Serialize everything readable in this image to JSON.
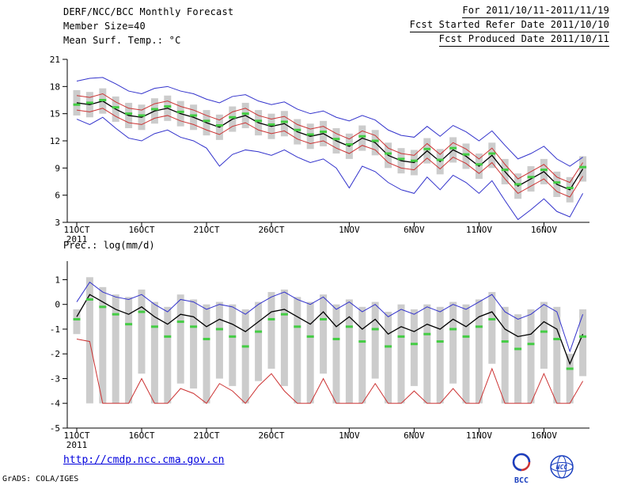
{
  "header": {
    "title": "DERF/NCC/BCC Monthly Forecast",
    "member_size": "Member Size=40",
    "forecast_range": "For 2011/10/11-2011/11/19",
    "refer_date": "Fcst Started Refer Date 2011/10/10",
    "produced_date": "Fcst Produced Date 2011/10/11"
  },
  "footer": {
    "url": "http://cmdp.ncc.cma.gov.cn",
    "credit": "GrADS: COLA/IGES",
    "logo_bcc": "BCC",
    "logo_ncc": "NCC"
  },
  "colors": {
    "bar": "#cccccc",
    "blue_line": "#3333cc",
    "red_line": "#cc3333",
    "black_line": "#000000",
    "green_dash": "#44cc44",
    "axis": "#000000",
    "url_blue": "#0000dd"
  },
  "chart_data": [
    {
      "id": "temp",
      "type": "line",
      "title": "Mean Surf. Temp.: °C",
      "ylim": [
        3,
        21
      ],
      "yticks": [
        21,
        18,
        15,
        12,
        9,
        6,
        3
      ],
      "year_label": "2011",
      "x_dates": [
        "11OCT",
        "12OCT",
        "13OCT",
        "14OCT",
        "15OCT",
        "16OCT",
        "17OCT",
        "18OCT",
        "19OCT",
        "20OCT",
        "21OCT",
        "22OCT",
        "23OCT",
        "24OCT",
        "25OCT",
        "26OCT",
        "27OCT",
        "28OCT",
        "29OCT",
        "30OCT",
        "31OCT",
        "1NOV",
        "2NOV",
        "3NOV",
        "4NOV",
        "5NOV",
        "6NOV",
        "7NOV",
        "8NOV",
        "9NOV",
        "10NOV",
        "11NOV",
        "12NOV",
        "13NOV",
        "14NOV",
        "15NOV",
        "16NOV",
        "17NOV",
        "18NOV",
        "19NOV"
      ],
      "x_ticks": [
        {
          "index": 0,
          "label": "11OCT"
        },
        {
          "index": 5,
          "label": "16OCT"
        },
        {
          "index": 10,
          "label": "21OCT"
        },
        {
          "index": 15,
          "label": "26OCT"
        },
        {
          "index": 21,
          "label": "1NOV"
        },
        {
          "index": 26,
          "label": "6NOV"
        },
        {
          "index": 31,
          "label": "11NOV"
        },
        {
          "index": 36,
          "label": "16NOV"
        }
      ],
      "series": [
        {
          "name": "ensemble-spread",
          "type": "bar",
          "color": "#cccccc",
          "low": [
            14.8,
            14.6,
            15.0,
            14.1,
            13.4,
            13.2,
            13.9,
            14.2,
            13.6,
            13.2,
            12.6,
            12.1,
            13.0,
            13.4,
            12.6,
            12.2,
            12.5,
            11.6,
            11.1,
            11.4,
            10.6,
            10.0,
            10.9,
            10.4,
            9.0,
            8.4,
            8.2,
            9.5,
            8.3,
            9.6,
            8.9,
            7.8,
            9.0,
            7.2,
            5.6,
            6.4,
            7.2,
            5.8,
            5.2,
            7.5
          ],
          "high": [
            17.6,
            17.4,
            17.8,
            16.9,
            16.2,
            16.0,
            16.7,
            17.0,
            16.4,
            16.0,
            15.4,
            14.9,
            15.8,
            16.2,
            15.4,
            15.0,
            15.3,
            14.4,
            13.9,
            14.2,
            13.4,
            12.8,
            13.7,
            13.2,
            11.8,
            11.2,
            11.0,
            12.3,
            11.1,
            12.4,
            11.7,
            10.6,
            11.8,
            10.0,
            8.4,
            9.2,
            10.0,
            8.6,
            8.0,
            10.3
          ]
        },
        {
          "name": "ensemble-max",
          "type": "line",
          "color": "#3333cc",
          "values": [
            18.6,
            18.9,
            19.0,
            18.3,
            17.5,
            17.2,
            17.8,
            18.0,
            17.5,
            17.2,
            16.6,
            16.2,
            16.9,
            17.1,
            16.4,
            16.0,
            16.3,
            15.5,
            15.0,
            15.3,
            14.6,
            14.2,
            14.8,
            14.3,
            13.2,
            12.6,
            12.4,
            13.6,
            12.5,
            13.7,
            13.0,
            12.0,
            13.1,
            11.5,
            10.0,
            10.6,
            11.4,
            10.0,
            9.2,
            10.2
          ]
        },
        {
          "name": "ensemble-min",
          "type": "line",
          "color": "#3333cc",
          "values": [
            14.4,
            13.8,
            14.6,
            13.4,
            12.3,
            12.0,
            12.8,
            13.2,
            12.4,
            12.0,
            11.2,
            9.2,
            10.5,
            11.0,
            10.8,
            10.4,
            11.0,
            10.2,
            9.6,
            10.0,
            9.0,
            6.8,
            9.2,
            8.6,
            7.4,
            6.6,
            6.2,
            8.0,
            6.6,
            8.2,
            7.4,
            6.2,
            7.6,
            5.4,
            3.3,
            4.4,
            5.6,
            4.2,
            3.6,
            6.2
          ]
        },
        {
          "name": "upper-quartile",
          "type": "line",
          "color": "#cc3333",
          "values": [
            17.0,
            16.8,
            17.2,
            16.3,
            15.6,
            15.4,
            16.1,
            16.4,
            15.8,
            15.4,
            14.8,
            14.3,
            15.2,
            15.6,
            14.8,
            14.4,
            14.7,
            13.8,
            13.3,
            13.6,
            12.8,
            12.2,
            13.1,
            12.6,
            11.2,
            10.6,
            10.4,
            11.7,
            10.5,
            11.8,
            11.1,
            10.0,
            11.2,
            9.4,
            7.8,
            8.6,
            9.4,
            8.0,
            7.4,
            9.6
          ]
        },
        {
          "name": "lower-quartile",
          "type": "line",
          "color": "#cc3333",
          "values": [
            15.4,
            15.2,
            15.6,
            14.7,
            14.0,
            13.8,
            14.5,
            14.8,
            14.2,
            13.8,
            13.2,
            12.7,
            13.6,
            14.0,
            13.2,
            12.8,
            13.1,
            12.2,
            11.7,
            12.0,
            11.2,
            10.6,
            11.5,
            11.0,
            9.6,
            9.0,
            8.8,
            10.1,
            8.9,
            10.2,
            9.5,
            8.4,
            9.6,
            7.8,
            6.2,
            7.0,
            7.8,
            6.4,
            5.8,
            8.1
          ]
        },
        {
          "name": "ensemble-mean",
          "type": "line",
          "color": "#000000",
          "values": [
            16.2,
            16.0,
            16.4,
            15.5,
            14.8,
            14.6,
            15.3,
            15.6,
            15.0,
            14.6,
            14.0,
            13.5,
            14.4,
            14.8,
            14.0,
            13.6,
            13.9,
            13.0,
            12.5,
            12.8,
            12.0,
            11.4,
            12.3,
            11.8,
            10.4,
            9.8,
            9.6,
            10.9,
            9.7,
            11.0,
            10.3,
            9.2,
            10.4,
            8.6,
            7.0,
            7.8,
            8.6,
            7.2,
            6.6,
            8.9
          ]
        },
        {
          "name": "ensemble-median",
          "type": "dash",
          "color": "#44cc44",
          "values": [
            16.0,
            16.2,
            16.5,
            15.7,
            15.0,
            14.8,
            15.5,
            15.8,
            15.2,
            14.8,
            14.2,
            13.7,
            14.6,
            15.0,
            14.2,
            13.8,
            14.1,
            13.2,
            12.7,
            13.0,
            12.2,
            11.6,
            12.5,
            12.0,
            10.6,
            10.0,
            9.8,
            11.1,
            9.9,
            11.2,
            10.5,
            9.4,
            10.6,
            8.8,
            7.2,
            8.0,
            8.8,
            7.4,
            6.8,
            9.1
          ]
        }
      ]
    },
    {
      "id": "precip",
      "type": "line",
      "title": "Prec.: log(mm/d)",
      "ylim": [
        -5,
        1.75
      ],
      "yticks": [
        1,
        0,
        -1,
        -2,
        -3,
        -4,
        -5
      ],
      "year_label": "2011",
      "x_dates": [
        "11OCT",
        "12OCT",
        "13OCT",
        "14OCT",
        "15OCT",
        "16OCT",
        "17OCT",
        "18OCT",
        "19OCT",
        "20OCT",
        "21OCT",
        "22OCT",
        "23OCT",
        "24OCT",
        "25OCT",
        "26OCT",
        "27OCT",
        "28OCT",
        "29OCT",
        "30OCT",
        "31OCT",
        "1NOV",
        "2NOV",
        "3NOV",
        "4NOV",
        "5NOV",
        "6NOV",
        "7NOV",
        "8NOV",
        "9NOV",
        "10NOV",
        "11NOV",
        "12NOV",
        "13NOV",
        "14NOV",
        "15NOV",
        "16NOV",
        "17NOV",
        "18NOV",
        "19NOV"
      ],
      "x_ticks": [
        {
          "index": 0,
          "label": "11OCT"
        },
        {
          "index": 5,
          "label": "16OCT"
        },
        {
          "index": 10,
          "label": "21OCT"
        },
        {
          "index": 15,
          "label": "26OCT"
        },
        {
          "index": 21,
          "label": "1NOV"
        },
        {
          "index": 26,
          "label": "6NOV"
        },
        {
          "index": 31,
          "label": "11NOV"
        },
        {
          "index": 36,
          "label": "16NOV"
        }
      ],
      "series": [
        {
          "name": "ensemble-spread",
          "type": "bar",
          "color": "#cccccc",
          "low": [
            -1.2,
            -4.0,
            -4.0,
            -4.0,
            -4.0,
            -2.8,
            -4.0,
            -4.0,
            -3.2,
            -3.4,
            -4.0,
            -3.0,
            -3.3,
            -4.0,
            -3.1,
            -2.6,
            -3.3,
            -4.0,
            -4.0,
            -2.8,
            -4.0,
            -4.0,
            -4.0,
            -3.0,
            -4.0,
            -4.0,
            -3.3,
            -4.0,
            -4.0,
            -3.2,
            -4.0,
            -4.0,
            -2.4,
            -4.0,
            -4.0,
            -4.0,
            -2.6,
            -4.0,
            -4.0,
            -2.9
          ],
          "high": [
            -0.2,
            1.1,
            0.7,
            0.4,
            0.3,
            0.6,
            0.1,
            -0.1,
            0.4,
            0.2,
            0.0,
            0.1,
            0.0,
            -0.2,
            0.1,
            0.5,
            0.6,
            0.3,
            0.1,
            0.4,
            0.0,
            0.2,
            -0.1,
            0.1,
            -0.3,
            0.0,
            -0.2,
            0.0,
            -0.1,
            0.1,
            0.0,
            0.2,
            0.5,
            -0.1,
            -0.4,
            -0.2,
            0.1,
            -0.1,
            -2.0,
            -0.2
          ]
        },
        {
          "name": "ensemble-max",
          "type": "line",
          "color": "#3333cc",
          "values": [
            0.1,
            0.9,
            0.5,
            0.3,
            0.2,
            0.4,
            0.0,
            -0.3,
            0.2,
            0.1,
            -0.2,
            0.0,
            -0.1,
            -0.4,
            0.0,
            0.3,
            0.5,
            0.2,
            0.0,
            0.3,
            -0.2,
            0.1,
            -0.3,
            0.0,
            -0.5,
            -0.2,
            -0.4,
            -0.1,
            -0.3,
            0.0,
            -0.2,
            0.1,
            0.4,
            -0.3,
            -0.6,
            -0.4,
            0.0,
            -0.3,
            -1.9,
            -0.4
          ]
        },
        {
          "name": "ensemble-min",
          "type": "line",
          "color": "#cc3333",
          "values": [
            -1.4,
            -1.5,
            -4.0,
            -4.0,
            -4.0,
            -3.0,
            -4.0,
            -4.0,
            -3.4,
            -3.6,
            -4.0,
            -3.2,
            -3.5,
            -4.0,
            -3.3,
            -2.8,
            -3.5,
            -4.0,
            -4.0,
            -3.0,
            -4.0,
            -4.0,
            -4.0,
            -3.2,
            -4.0,
            -4.0,
            -3.5,
            -4.0,
            -4.0,
            -3.4,
            -4.0,
            -4.0,
            -2.6,
            -4.0,
            -4.0,
            -4.0,
            -2.8,
            -4.0,
            -4.0,
            -3.1
          ]
        },
        {
          "name": "ensemble-mean",
          "type": "line",
          "color": "#000000",
          "values": [
            -0.5,
            0.4,
            0.1,
            -0.2,
            -0.4,
            -0.1,
            -0.5,
            -0.8,
            -0.4,
            -0.5,
            -0.9,
            -0.6,
            -0.8,
            -1.1,
            -0.7,
            -0.3,
            -0.2,
            -0.5,
            -0.8,
            -0.3,
            -0.9,
            -0.5,
            -1.0,
            -0.6,
            -1.2,
            -0.9,
            -1.1,
            -0.8,
            -1.0,
            -0.6,
            -0.9,
            -0.5,
            -0.3,
            -1.0,
            -1.3,
            -1.2,
            -0.7,
            -1.0,
            -2.4,
            -1.2
          ]
        },
        {
          "name": "ensemble-median",
          "type": "dash",
          "color": "#44cc44",
          "values": [
            -0.6,
            0.2,
            -0.1,
            -0.4,
            -0.8,
            -0.3,
            -0.9,
            -1.3,
            -0.7,
            -0.9,
            -1.4,
            -1.0,
            -1.3,
            -1.7,
            -1.1,
            -0.6,
            -0.4,
            -0.9,
            -1.3,
            -0.6,
            -1.4,
            -0.9,
            -1.5,
            -1.0,
            -1.7,
            -1.3,
            -1.6,
            -1.2,
            -1.5,
            -1.0,
            -1.3,
            -0.9,
            -0.6,
            -1.5,
            -1.8,
            -1.6,
            -1.1,
            -1.4,
            -2.6,
            -1.3
          ]
        }
      ]
    }
  ]
}
